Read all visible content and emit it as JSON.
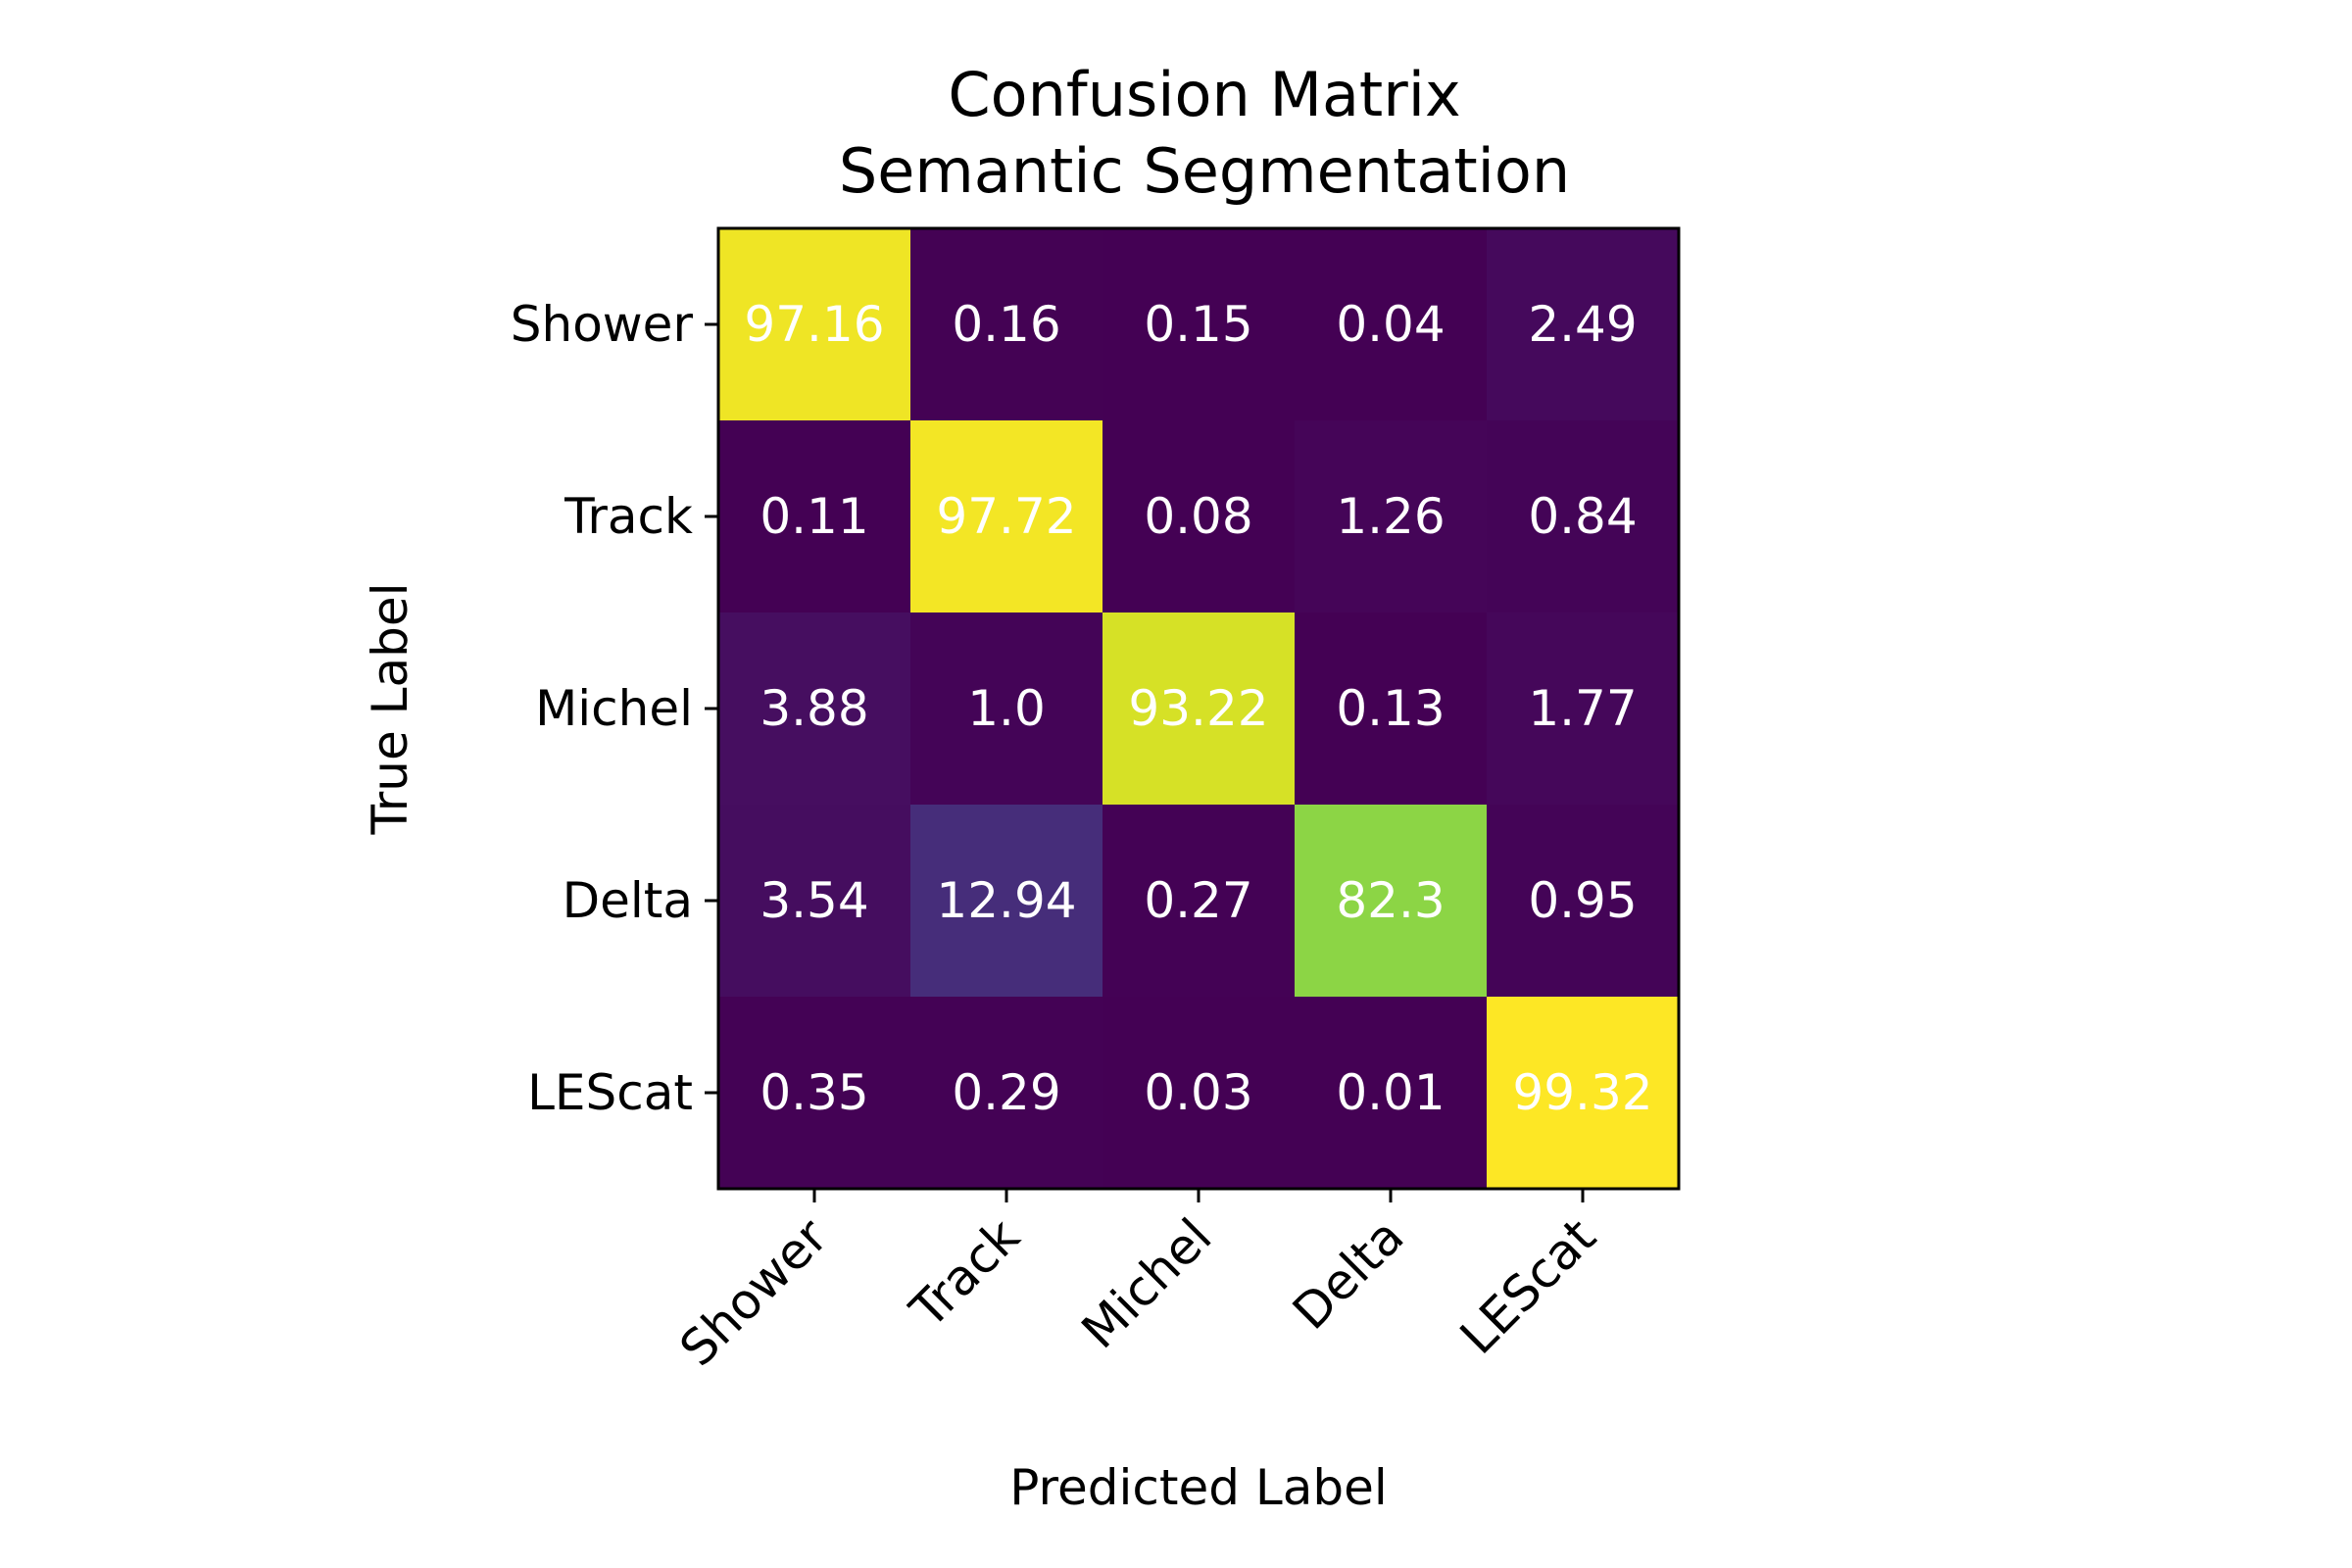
{
  "chart_data": {
    "type": "heatmap",
    "title": [
      "Confusion Matrix",
      "Semantic Segmentation"
    ],
    "xlabel": "Predicted Label",
    "ylabel": "True Label",
    "x_categories": [
      "Shower",
      "Track",
      "Michel",
      "Delta",
      "LEScat"
    ],
    "y_categories": [
      "Shower",
      "Track",
      "Michel",
      "Delta",
      "LEScat"
    ],
    "values": [
      [
        97.16,
        0.16,
        0.15,
        0.04,
        2.49
      ],
      [
        0.11,
        97.72,
        0.08,
        1.26,
        0.84
      ],
      [
        3.88,
        1.0,
        93.22,
        0.13,
        1.77
      ],
      [
        3.54,
        12.94,
        0.27,
        82.3,
        0.95
      ],
      [
        0.35,
        0.29,
        0.03,
        0.01,
        99.32
      ]
    ],
    "value_labels": [
      [
        "97.16",
        "0.16",
        "0.15",
        "0.04",
        "2.49"
      ],
      [
        "0.11",
        "97.72",
        "0.08",
        "1.26",
        "0.84"
      ],
      [
        "3.88",
        "1.0",
        "93.22",
        "0.13",
        "1.77"
      ],
      [
        "3.54",
        "12.94",
        "0.27",
        "82.3",
        "0.95"
      ],
      [
        "0.35",
        "0.29",
        "0.03",
        "0.01",
        "99.32"
      ]
    ],
    "colormap": "viridis",
    "colorbar": false,
    "value_label_color": "#ffffff"
  }
}
